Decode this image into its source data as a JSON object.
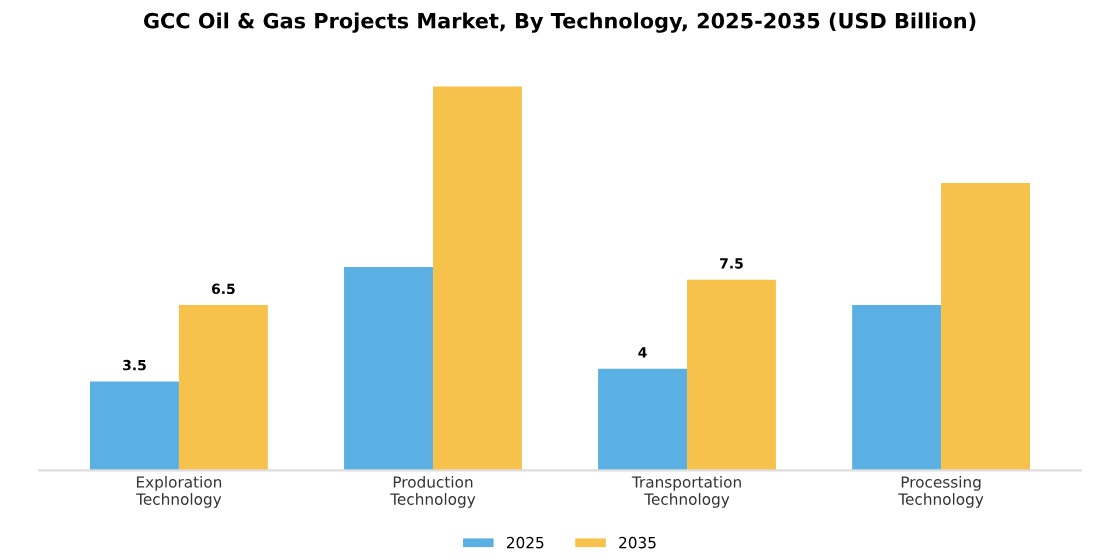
{
  "chart_data": {
    "type": "bar",
    "title": "GCC Oil & Gas Projects Market, By Technology, 2025-2035 (USD Billion)",
    "categories": [
      "Exploration\nTechnology",
      "Production\nTechnology",
      "Transportation\nTechnology",
      "Processing\nTechnology"
    ],
    "series": [
      {
        "name": "2025",
        "color": "#5ab0e2",
        "values": [
          3.5,
          8.0,
          4,
          6.5
        ],
        "value_labels": [
          "3.5",
          null,
          "4",
          null
        ]
      },
      {
        "name": "2035",
        "color": "#f6c24b",
        "values": [
          6.5,
          15.1,
          7.5,
          11.3
        ],
        "value_labels": [
          "6.5",
          null,
          "7.5",
          null
        ]
      }
    ],
    "legend": "bottom",
    "grid": false
  }
}
